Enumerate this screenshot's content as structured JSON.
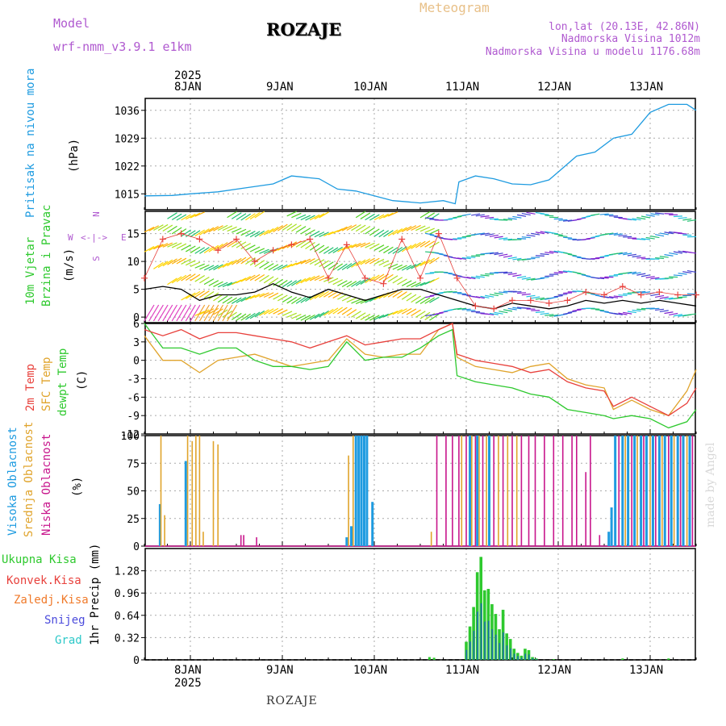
{
  "header": {
    "model_label": "Model",
    "model_name": "wrf-nmm_v3.9.1  e1km",
    "station": "ROZAJE",
    "title": "Meteogram",
    "lonlat": "lon,lat (20.13E, 42.86N)",
    "altitude": "Nadmorska Visina 1012m",
    "model_altitude": "Nadmorska Visina u modelu 1176.68m"
  },
  "footer": {
    "station": "ROZAJE",
    "credit": "made by Angel"
  },
  "colors": {
    "pressure": "#1e9be0",
    "temp2m": "#e8413c",
    "sfc": "#e0a42c",
    "dewpt": "#2ec92e",
    "high": "#1e9be0",
    "mid": "#e0a42c",
    "low": "#c8168c",
    "total": "#2ec92e",
    "conv": "#e8413c",
    "frozen": "#f07a2a",
    "snow": "#4b4bdc",
    "hail": "#2cc8c8",
    "accent": "#b05ad0"
  },
  "x_axis": {
    "year": "2025",
    "days": [
      "8JAN",
      "9JAN",
      "10JAN",
      "11JAN",
      "12JAN",
      "13JAN"
    ]
  },
  "panels": {
    "pressure": {
      "label": "Pritisak na nivou mora",
      "unit": "(hPa)"
    },
    "wind": {
      "label1": "10m Vjetar",
      "label2": "Brzina i Pravac",
      "unit": "(m/s)",
      "compass": {
        "n": "N",
        "e": "E",
        "w": "W",
        "s": "S",
        "glyph": "<-|->"
      }
    },
    "temp": {
      "label1": "2m Temp",
      "label2": "SFC Temp",
      "label3": "dewpt Temp",
      "unit": "(C)"
    },
    "cloud": {
      "label1": "Visoka Oblacnost",
      "label2": "Srednja Oblacnost",
      "label3": "Niska Oblacnost",
      "unit": "(%)"
    },
    "precip": {
      "legend": [
        "Ukupna Kisa",
        "Konvek.Kisa",
        "Zaledj.Kisa",
        "Snijeg",
        "Grad"
      ],
      "unit": "1hr Precip (mm)"
    }
  },
  "chart_data": [
    {
      "type": "line",
      "title": "",
      "ylabel": "(hPa)",
      "ylim": [
        1011,
        1039
      ],
      "yticks": [
        "1015",
        "1022",
        "1029",
        "1036"
      ],
      "x_unit": "days since 8JAN 00UTC",
      "series": [
        {
          "name": "Pritisak na nivou mora",
          "x": [
            -0.5,
            -0.2,
            0,
            0.3,
            0.6,
            0.9,
            1.1,
            1.4,
            1.6,
            1.8,
            2.0,
            2.2,
            2.5,
            2.75,
            2.88,
            2.92,
            3.1,
            3.3,
            3.5,
            3.7,
            3.9,
            4.0,
            4.2,
            4.4,
            4.6,
            4.8,
            5.0,
            5.2,
            5.4,
            5.5
          ],
          "values": [
            1014.5,
            1014.6,
            1015,
            1015.5,
            1016.5,
            1017.5,
            1019.5,
            1018.8,
            1016.2,
            1015.7,
            1014.5,
            1013.3,
            1012.7,
            1013.3,
            1012.5,
            1018,
            1019.5,
            1018.8,
            1017.5,
            1017.3,
            1018.5,
            1020.5,
            1024.5,
            1025.5,
            1029,
            1030,
            1035.5,
            1037.5,
            1037.5,
            1036
          ]
        }
      ]
    },
    {
      "type": "line",
      "title": "",
      "ylabel": "(m/s)",
      "ylim": [
        -1,
        19
      ],
      "yticks": [
        "0",
        "5",
        "10",
        "15"
      ],
      "series": [
        {
          "name": "wind speed",
          "x": [
            -0.5,
            -0.3,
            -0.1,
            0.1,
            0.3,
            0.5,
            0.7,
            0.9,
            1.1,
            1.3,
            1.5,
            1.7,
            1.9,
            2.1,
            2.3,
            2.5,
            2.7,
            2.9,
            3.1,
            3.3,
            3.5,
            3.7,
            3.9,
            4.1,
            4.3,
            4.5,
            4.7,
            4.9,
            5.1,
            5.3,
            5.5
          ],
          "values": [
            5,
            5.5,
            5,
            3,
            4,
            4,
            4.5,
            6,
            4.5,
            3.5,
            5,
            4,
            3,
            4,
            5,
            5,
            4,
            3,
            2,
            1.5,
            2.5,
            2,
            1.5,
            2,
            3,
            2.5,
            3,
            2.5,
            3,
            2.5,
            2
          ]
        },
        {
          "name": "wind gust",
          "x": [
            -0.5,
            -0.3,
            -0.1,
            0.1,
            0.3,
            0.5,
            0.7,
            0.9,
            1.1,
            1.3,
            1.5,
            1.7,
            1.9,
            2.1,
            2.3,
            2.5,
            2.7,
            2.9,
            3.1,
            3.3,
            3.5,
            3.7,
            3.9,
            4.1,
            4.3,
            4.5,
            4.7,
            4.9,
            5.1,
            5.3,
            5.5
          ],
          "values": [
            7,
            14,
            15,
            14,
            12,
            14,
            10,
            12,
            13,
            14,
            7,
            13,
            7,
            6,
            14,
            7,
            15,
            7,
            2,
            1.5,
            3,
            3,
            2.5,
            3,
            4.5,
            4,
            5.5,
            4,
            4.5,
            4,
            4
          ]
        }
      ]
    },
    {
      "type": "line",
      "title": "",
      "ylabel": "(C)",
      "ylim": [
        -12,
        6
      ],
      "yticks": [
        "-12",
        "-9",
        "-6",
        "-3",
        "0",
        "3",
        "6"
      ],
      "series": [
        {
          "name": "2m Temp",
          "x": [
            -0.5,
            -0.3,
            -0.1,
            0.1,
            0.3,
            0.5,
            0.7,
            0.9,
            1.1,
            1.3,
            1.5,
            1.7,
            1.9,
            2.1,
            2.3,
            2.5,
            2.7,
            2.85,
            2.9,
            3.1,
            3.3,
            3.5,
            3.7,
            3.9,
            4.1,
            4.3,
            4.5,
            4.6,
            4.8,
            5.0,
            5.2,
            5.4,
            5.5
          ],
          "values": [
            5,
            4,
            5,
            3.5,
            4.5,
            4.5,
            4,
            3.5,
            3,
            2,
            3,
            4,
            2.5,
            3,
            3.5,
            3.5,
            5,
            6,
            1,
            0,
            -0.5,
            -1,
            -2,
            -1.5,
            -3.5,
            -4.5,
            -5,
            -7.5,
            -6,
            -7.5,
            -9,
            -7,
            -4.5
          ]
        },
        {
          "name": "SFC Temp",
          "x": [
            -0.5,
            -0.3,
            -0.1,
            0.1,
            0.3,
            0.5,
            0.7,
            0.9,
            1.1,
            1.3,
            1.5,
            1.7,
            1.9,
            2.1,
            2.3,
            2.5,
            2.7,
            2.85,
            2.9,
            3.1,
            3.3,
            3.5,
            3.7,
            3.9,
            4.1,
            4.3,
            4.5,
            4.6,
            4.8,
            5.0,
            5.2,
            5.4,
            5.5
          ],
          "values": [
            4,
            0,
            0,
            -2,
            0,
            0.5,
            1,
            0,
            -1,
            -0.5,
            0,
            3.5,
            1,
            0.5,
            1,
            1,
            5,
            6,
            0.5,
            -1,
            -1.5,
            -2,
            -1,
            -0.5,
            -3,
            -4,
            -4.5,
            -8,
            -6.5,
            -8,
            -9,
            -5,
            -1.5
          ]
        },
        {
          "name": "dewpt Temp",
          "x": [
            -0.5,
            -0.3,
            -0.1,
            0.1,
            0.3,
            0.5,
            0.7,
            0.9,
            1.1,
            1.3,
            1.5,
            1.7,
            1.9,
            2.1,
            2.3,
            2.5,
            2.7,
            2.85,
            2.9,
            3.1,
            3.3,
            3.5,
            3.7,
            3.9,
            4.1,
            4.3,
            4.5,
            4.6,
            4.8,
            5.0,
            5.2,
            5.4,
            5.5
          ],
          "values": [
            6,
            2,
            2,
            1,
            2,
            2,
            0,
            -1,
            -1,
            -1.5,
            -1,
            3,
            0,
            0.5,
            0.5,
            2,
            4,
            5,
            -2.5,
            -3.5,
            -4,
            -4.5,
            -5.5,
            -6,
            -8,
            -8.5,
            -9,
            -9.5,
            -9,
            -9.5,
            -11,
            -10,
            -8
          ]
        }
      ]
    },
    {
      "type": "bar",
      "title": "",
      "ylabel": "(%)",
      "ylim": [
        0,
        100
      ],
      "yticks": [
        "0",
        "25",
        "50",
        "75",
        "100"
      ]
    },
    {
      "type": "bar",
      "title": "",
      "ylabel": "1hr Precip (mm)",
      "ylim": [
        0,
        1.6
      ],
      "yticks": [
        "0",
        "0.32",
        "0.64",
        "0.96",
        "1.28"
      ],
      "series": [
        {
          "name": "Ukupna Kisa",
          "x": [
            3.0,
            3.04,
            3.08,
            3.12,
            3.16,
            3.2,
            3.24,
            3.28,
            3.32,
            3.36,
            3.4,
            3.44,
            3.48,
            3.52,
            3.56,
            3.6,
            3.64,
            3.68,
            3.72,
            3.76
          ],
          "values": [
            0.26,
            0.48,
            0.76,
            1.26,
            1.48,
            1.0,
            1.02,
            0.8,
            0.66,
            0.44,
            0.72,
            0.38,
            0.3,
            0.16,
            0.1,
            0.06,
            0.16,
            0.14,
            0.04,
            0.02
          ]
        }
      ]
    }
  ]
}
